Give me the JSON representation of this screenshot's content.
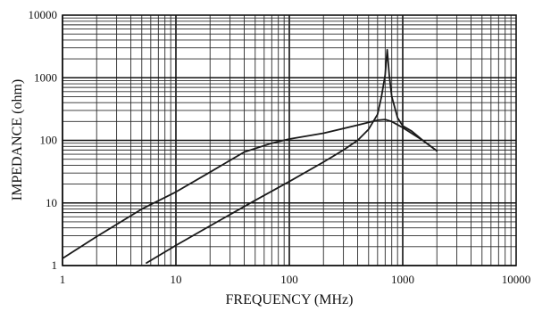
{
  "chart_data": {
    "type": "line",
    "xlabel": "FREQUENCY (MHz)",
    "ylabel": "IMPEDANCE (ohm)",
    "xscale": "log",
    "yscale": "log",
    "xlim": [
      1,
      10000
    ],
    "ylim": [
      1,
      10000
    ],
    "grid": true,
    "x_tick_labels": [
      "1",
      "10",
      "100",
      "1000",
      "10000"
    ],
    "y_tick_labels": [
      "1",
      "10",
      "100",
      "1000",
      "10000"
    ],
    "colors": {
      "line": "#1a1a1a",
      "grid": "#2a2a2a",
      "background": "#ffffff"
    },
    "series": [
      {
        "points": [
          [
            1,
            1.3
          ],
          [
            2,
            2.9
          ],
          [
            5,
            8
          ],
          [
            10,
            15
          ],
          [
            20,
            31
          ],
          [
            40,
            65
          ],
          [
            70,
            90
          ],
          [
            100,
            105
          ],
          [
            200,
            130
          ],
          [
            400,
            175
          ],
          [
            600,
            210
          ],
          [
            700,
            215
          ],
          [
            800,
            200
          ],
          [
            1000,
            160
          ],
          [
            1500,
            100
          ],
          [
            2000,
            68
          ]
        ]
      },
      {
        "points": [
          [
            5.5,
            1.1
          ],
          [
            10,
            2.1
          ],
          [
            20,
            4.3
          ],
          [
            50,
            11
          ],
          [
            100,
            22
          ],
          [
            200,
            45
          ],
          [
            300,
            70
          ],
          [
            400,
            100
          ],
          [
            500,
            150
          ],
          [
            600,
            260
          ],
          [
            650,
            500
          ],
          [
            700,
            1100
          ],
          [
            730,
            2800
          ],
          [
            760,
            1100
          ],
          [
            800,
            500
          ],
          [
            900,
            230
          ],
          [
            1000,
            170
          ],
          [
            1200,
            140
          ],
          [
            1500,
            100
          ],
          [
            2000,
            68
          ]
        ]
      }
    ]
  }
}
